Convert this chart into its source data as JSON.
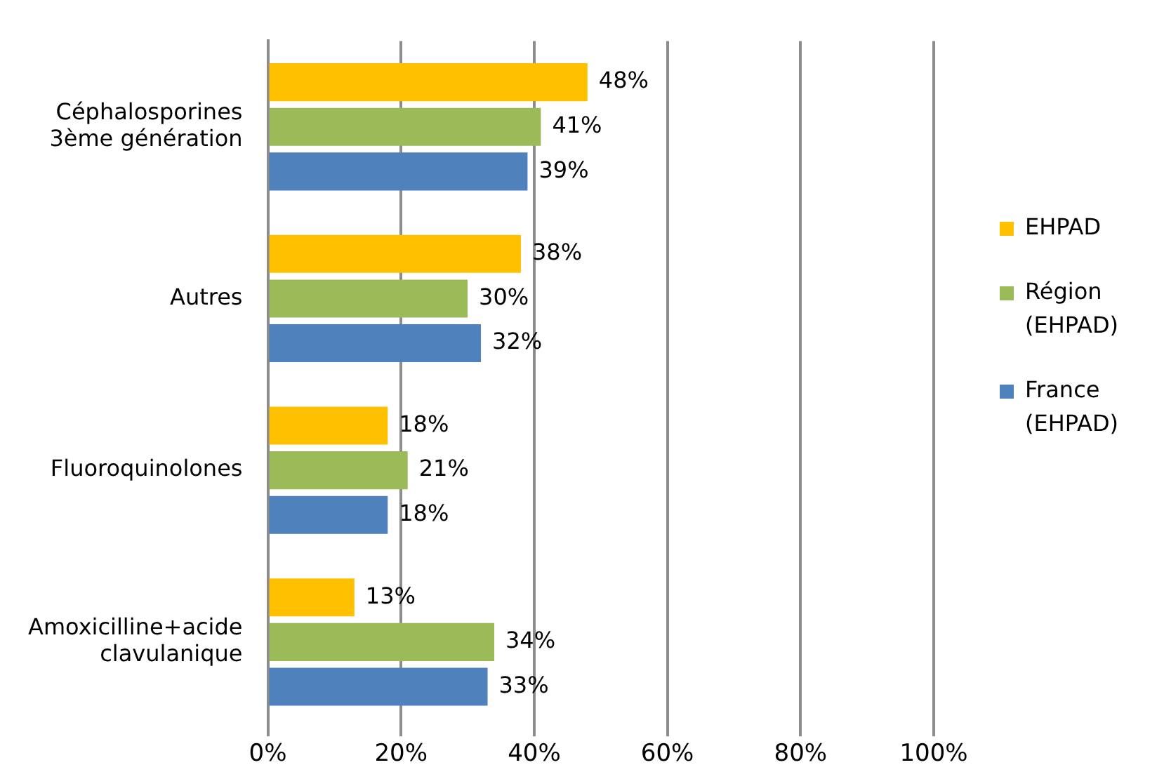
{
  "chart_data": {
    "type": "bar",
    "orientation": "horizontal",
    "categories": [
      "Céphalosporines 3ème génération",
      "Autres",
      "Fluoroquinolones",
      "Amoxicilline+acide clavulanique"
    ],
    "series": [
      {
        "name": "EHPAD",
        "color": "#ffc000",
        "values": [
          48,
          38,
          18,
          13
        ],
        "value_labels": [
          "48%",
          "38%",
          "18%",
          "13%"
        ]
      },
      {
        "name": "Région (EHPAD)",
        "color": "#9bbb59",
        "values": [
          41,
          30,
          21,
          34
        ],
        "value_labels": [
          "41%",
          "30%",
          "21%",
          "34%"
        ]
      },
      {
        "name": "France (EHPAD)",
        "color": "#4f81bd",
        "values": [
          39,
          32,
          18,
          33
        ],
        "value_labels": [
          "39%",
          "32%",
          "18%",
          "33%"
        ]
      }
    ],
    "xlim": [
      0,
      100
    ],
    "xticks": [
      {
        "value": 0,
        "label": "0%"
      },
      {
        "value": 20,
        "label": "20%"
      },
      {
        "value": 40,
        "label": "40%"
      },
      {
        "value": 60,
        "label": "60%"
      },
      {
        "value": 80,
        "label": "80%"
      },
      {
        "value": 100,
        "label": "100%"
      }
    ],
    "grid": "x",
    "legend": "right"
  }
}
